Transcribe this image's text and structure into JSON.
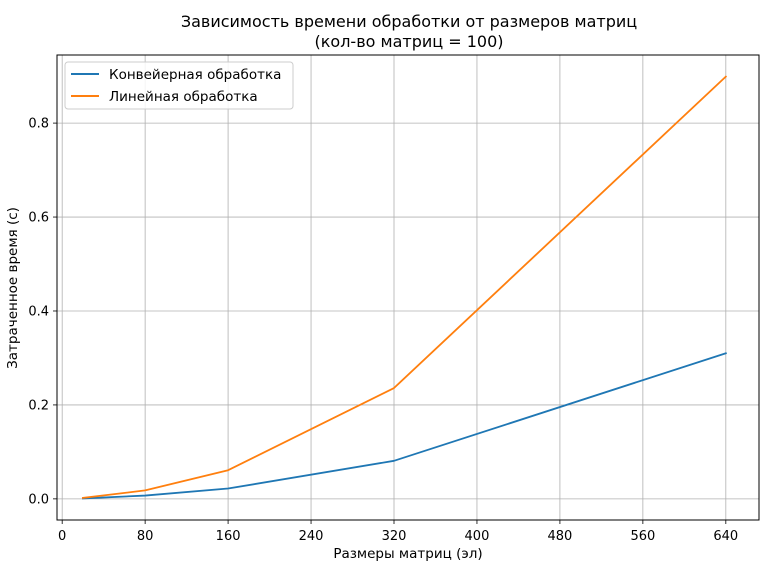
{
  "chart_data": {
    "type": "line",
    "title": "Зависимость времени обработки от размеров матриц",
    "subtitle": "(кол-во матриц = 100)",
    "xlabel": "Размеры матриц (эл)",
    "ylabel": "Затраченное время (с)",
    "xlim": [
      -5,
      672
    ],
    "ylim": [
      -0.045,
      0.945
    ],
    "xticks": [
      0,
      80,
      160,
      240,
      320,
      400,
      480,
      560,
      640
    ],
    "yticks": [
      0.0,
      0.2,
      0.4,
      0.6,
      0.8
    ],
    "ytick_labels": [
      "0.0",
      "0.2",
      "0.4",
      "0.6",
      "0.8"
    ],
    "grid": true,
    "legend_position": "top-left",
    "series": [
      {
        "name": "Конвейерная обработка",
        "color": "#1f77b4",
        "x": [
          20,
          80,
          160,
          320,
          640
        ],
        "y": [
          0.001,
          0.007,
          0.022,
          0.081,
          0.31
        ]
      },
      {
        "name": "Линейная обработка",
        "color": "#ff7f0e",
        "x": [
          20,
          80,
          160,
          320,
          640
        ],
        "y": [
          0.002,
          0.018,
          0.061,
          0.236,
          0.899
        ]
      }
    ]
  }
}
